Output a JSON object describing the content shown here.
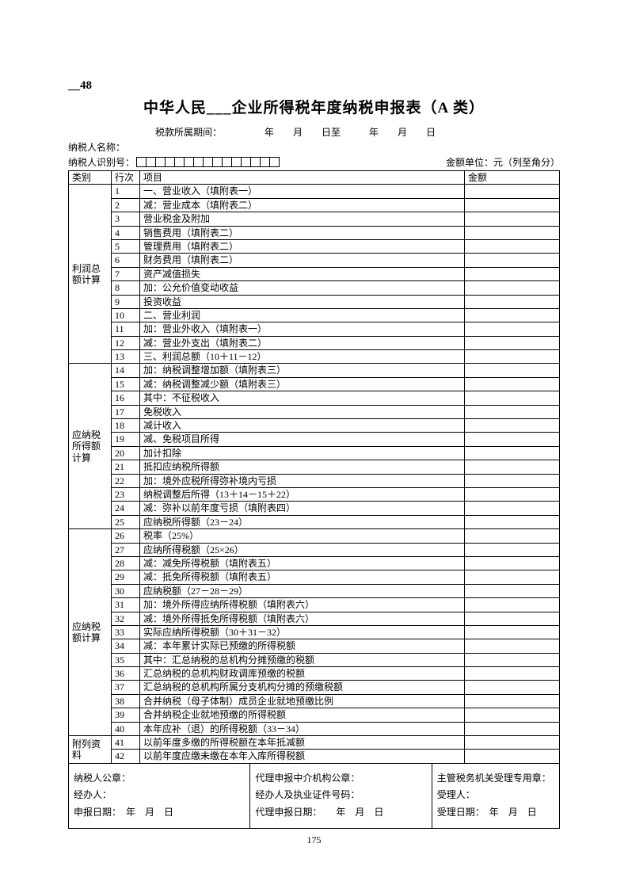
{
  "page_label": "__48",
  "title": "中华人民___企业所得税年度纳税申报表（A 类）",
  "period_line": "税款所属期间：　　　　　年　　月　　日至　　　年　　月　　日",
  "taxpayer_name_label": "纳税人名称：",
  "taxpayer_id_label": "纳税人识别号：",
  "id_box_count": 15,
  "unit_label": "金额单位：元（列至角分）",
  "headers": {
    "category": "类别",
    "row": "行次",
    "item": "项目",
    "amount": "金额"
  },
  "sections": [
    {
      "category": "利润总额计算",
      "rows": [
        {
          "n": "1",
          "indent": 1,
          "text": "一、营业收入（填附表一）"
        },
        {
          "n": "2",
          "indent": 1,
          "text": "减：营业成本（填附表二）"
        },
        {
          "n": "3",
          "indent": 2,
          "text": "营业税金及附加"
        },
        {
          "n": "4",
          "indent": 2,
          "text": "销售费用（填附表二）"
        },
        {
          "n": "5",
          "indent": 2,
          "text": "管理费用（填附表二）"
        },
        {
          "n": "6",
          "indent": 2,
          "text": "财务费用（填附表二）"
        },
        {
          "n": "7",
          "indent": 2,
          "text": "资产减值损失"
        },
        {
          "n": "8",
          "indent": 1,
          "text": "加：公允价值变动收益"
        },
        {
          "n": "9",
          "indent": 2,
          "text": "投资收益"
        },
        {
          "n": "10",
          "indent": 1,
          "text": "二、营业利润"
        },
        {
          "n": "11",
          "indent": 1,
          "text": "加：营业外收入（填附表一）"
        },
        {
          "n": "12",
          "indent": 1,
          "text": "减：营业外支出（填附表二）"
        },
        {
          "n": "13",
          "indent": 1,
          "text": "三、利润总额（10＋11－12）"
        }
      ]
    },
    {
      "category": "应纳税所得额计算",
      "rows": [
        {
          "n": "14",
          "indent": 1,
          "text": "加：纳税调整增加额（填附表三）"
        },
        {
          "n": "15",
          "indent": 1,
          "text": "减：纳税调整减少额（填附表三）"
        },
        {
          "n": "16",
          "indent": 1,
          "text": "其中：不征税收入"
        },
        {
          "n": "17",
          "indent": 2,
          "text": "免税收入"
        },
        {
          "n": "18",
          "indent": 2,
          "text": "减计收入"
        },
        {
          "n": "19",
          "indent": 2,
          "text": "减、免税项目所得"
        },
        {
          "n": "20",
          "indent": 2,
          "text": "加计扣除"
        },
        {
          "n": "21",
          "indent": 2,
          "text": "抵扣应纳税所得额"
        },
        {
          "n": "22",
          "indent": 1,
          "text": "加：境外应税所得弥补境内亏损"
        },
        {
          "n": "23",
          "indent": 1,
          "text": "纳税调整后所得（13＋14－15＋22）"
        },
        {
          "n": "24",
          "indent": 1,
          "text": "减：弥补以前年度亏损（填附表四）"
        },
        {
          "n": "25",
          "indent": 1,
          "text": "应纳税所得额（23－24）"
        }
      ]
    },
    {
      "category": "应纳税额计算",
      "rows": [
        {
          "n": "26",
          "indent": 1,
          "text": "税率（25%）"
        },
        {
          "n": "27",
          "indent": 1,
          "text": "应纳所得税额（25×26）"
        },
        {
          "n": "28",
          "indent": 1,
          "text": "减：减免所得税额（填附表五）"
        },
        {
          "n": "29",
          "indent": 1,
          "text": "减：抵免所得税额（填附表五）"
        },
        {
          "n": "30",
          "indent": 1,
          "text": "应纳税额（27－28－29）"
        },
        {
          "n": "31",
          "indent": 1,
          "text": "加：境外所得应纳所得税额（填附表六）"
        },
        {
          "n": "32",
          "indent": 1,
          "text": "减：境外所得抵免所得税额（填附表六）"
        },
        {
          "n": "33",
          "indent": 1,
          "text": "实际应纳所得税额（30＋31－32）"
        },
        {
          "n": "34",
          "indent": 1,
          "text": "减：本年累计实际已预缴的所得税额"
        },
        {
          "n": "35",
          "indent": 1,
          "text": "其中：汇总纳税的总机构分摊预缴的税额"
        },
        {
          "n": "36",
          "indent": 3,
          "text": "汇总纳税的总机构财政调库预缴的税额"
        },
        {
          "n": "37",
          "indent": 3,
          "text": "汇总纳税的总机构所属分支机构分摊的预缴税额"
        },
        {
          "n": "38",
          "indent": 3,
          "text": "合并纳税（母子体制）成员企业就地预缴比例"
        },
        {
          "n": "39",
          "indent": 3,
          "text": "合并纳税企业就地预缴的所得税额"
        },
        {
          "n": "40",
          "indent": 1,
          "text": "本年应补（退）的所得税额（33－34）"
        }
      ]
    },
    {
      "category": "附列资料",
      "rows": [
        {
          "n": "41",
          "indent": 1,
          "text": "以前年度多缴的所得税额在本年抵减额"
        },
        {
          "n": "42",
          "indent": 1,
          "text": "以前年度应缴未缴在本年入库所得税额"
        }
      ]
    }
  ],
  "footer": {
    "col1": {
      "l1": "纳税人公章：",
      "l2": "经办人：",
      "l3": "申报日期：　年　月　日"
    },
    "col2": {
      "l1": "代理申报中介机构公章：",
      "l2": "经办人及执业证件号码：",
      "l3": "代理申报日期：　　年　月　日"
    },
    "col3": {
      "l1": "主管税务机关受理专用章：",
      "l2": "受理人：",
      "l3": "受理日期：　年　月　日"
    }
  },
  "page_number": "175"
}
